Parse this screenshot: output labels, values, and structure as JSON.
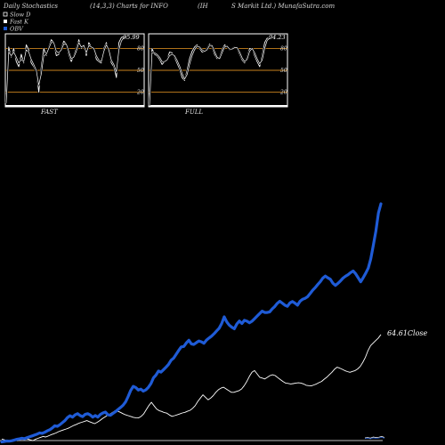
{
  "header": {
    "left": "Daily Stochastics",
    "middle": "(14,3,3) Charts for INFO",
    "right_a": "(IH",
    "right_b": "S Markit Ltd.) MunafaSutra.com"
  },
  "legend": [
    {
      "label": "Slow  D",
      "color": "#ffffff",
      "swatch": "empty"
    },
    {
      "label": "Fast K",
      "color": "#ffffff",
      "swatch": "filled"
    },
    {
      "label": "OBV",
      "color": "#1f5bd6",
      "swatch": "filled"
    }
  ],
  "colors": {
    "background": "#000000",
    "panel": "#ffffff",
    "level_line": "#c8821e",
    "stoch_line": "#ffffff",
    "obv": "#1f5bd6",
    "price": "#ffffff"
  },
  "chart_data": [
    {
      "type": "line",
      "panel_label": "FAST",
      "ylim": [
        0,
        100
      ],
      "levels": [
        80,
        50,
        20
      ],
      "level_labels": [
        "80",
        "50",
        "20"
      ],
      "last_value_label": "95.99",
      "series": [
        {
          "name": "Fast K",
          "values": [
            5,
            82,
            68,
            80,
            62,
            55,
            72,
            60,
            85,
            78,
            60,
            55,
            48,
            20,
            55,
            80,
            70,
            82,
            92,
            88,
            70,
            72,
            80,
            90,
            86,
            72,
            62,
            70,
            80,
            92,
            80,
            85,
            70,
            88,
            82,
            80,
            65,
            62,
            60,
            80,
            88,
            75,
            60,
            55,
            40,
            88,
            95,
            96,
            96
          ]
        },
        {
          "name": "Slow  D",
          "values": [
            5,
            75,
            70,
            75,
            68,
            60,
            65,
            62,
            78,
            75,
            65,
            58,
            50,
            30,
            45,
            70,
            72,
            80,
            88,
            88,
            76,
            74,
            78,
            86,
            86,
            76,
            66,
            68,
            76,
            88,
            82,
            84,
            74,
            84,
            82,
            80,
            70,
            64,
            62,
            76,
            85,
            78,
            64,
            58,
            48,
            78,
            90,
            95,
            96
          ]
        }
      ]
    },
    {
      "type": "line",
      "panel_label": "FULL",
      "ylim": [
        0,
        100
      ],
      "levels": [
        80,
        50,
        20
      ],
      "level_labels": [
        "80",
        "50",
        "20"
      ],
      "last_value_label": "94.23",
      "series": [
        {
          "name": "Fast K",
          "values": [
            2,
            80,
            72,
            70,
            65,
            58,
            62,
            64,
            75,
            74,
            68,
            60,
            52,
            40,
            36,
            50,
            66,
            76,
            82,
            85,
            80,
            75,
            76,
            80,
            86,
            82,
            72,
            66,
            68,
            78,
            85,
            82,
            78,
            80,
            82,
            80,
            72,
            64,
            60,
            68,
            80,
            80,
            70,
            62,
            55,
            70,
            88,
            94,
            94
          ]
        },
        {
          "name": "Slow  D",
          "values": [
            2,
            74,
            74,
            72,
            68,
            62,
            62,
            64,
            70,
            72,
            70,
            64,
            56,
            46,
            38,
            44,
            58,
            70,
            78,
            83,
            82,
            78,
            76,
            78,
            84,
            84,
            76,
            68,
            66,
            74,
            82,
            83,
            79,
            79,
            81,
            81,
            75,
            67,
            62,
            65,
            76,
            80,
            74,
            66,
            59,
            64,
            80,
            91,
            94
          ]
        }
      ]
    },
    {
      "type": "line",
      "panel_label": "",
      "series": [
        {
          "name": "OBV",
          "values": [
            2,
            4,
            6,
            5,
            7,
            10,
            13,
            15,
            18,
            16,
            20,
            24,
            28,
            32,
            36,
            41,
            39,
            44,
            50,
            55,
            63,
            72,
            70,
            77,
            86,
            95,
            108,
            116,
            110,
            120,
            125,
            117,
            112,
            122,
            125,
            119,
            110,
            117,
            110,
            122,
            128,
            132,
            120,
            118,
            126,
            134,
            143,
            152,
            162,
            177,
            200,
            226,
            244,
            239,
            228,
            232,
            223,
            229,
            240,
            256,
            281,
            293,
            311,
            306,
            317,
            328,
            340,
            358,
            367,
            384,
            401,
            416,
            418,
            433,
            445,
            429,
            427,
            435,
            442,
            438,
            432,
            446,
            455,
            463,
            474,
            486,
            497,
            518,
            547,
            525,
            511,
            502,
            495,
            516,
            529,
            518,
            532,
            528,
            521,
            528,
            539,
            550,
            561,
            572,
            566,
            566,
            569,
            582,
            592,
            606,
            615,
            607,
            598,
            593,
            608,
            614,
            607,
            598,
            615,
            624,
            628,
            635,
            649,
            663,
            675,
            688,
            700,
            716,
            725,
            717,
            711,
            694,
            684,
            693,
            704,
            716,
            724,
            731,
            740,
            747,
            735,
            718,
            700,
            718,
            738,
            760,
            800,
            860,
            920,
            1000,
            1040
          ]
        },
        {
          "name": "Price",
          "values": [
            2,
            1.5,
            1,
            0.8,
            1.2,
            1.5,
            1,
            2,
            2.5,
            2.2,
            2,
            1.5,
            1,
            1.8,
            2.4,
            3,
            3.5,
            3.2,
            3.8,
            4.5,
            5,
            5.6,
            6.4,
            7,
            7.5,
            8,
            8.6,
            9.4,
            10.2,
            10.8,
            11.5,
            12,
            12.5,
            13,
            12.4,
            11.8,
            11.2,
            12,
            13,
            14.2,
            15.2,
            16.2,
            17,
            18,
            19,
            18.6,
            18,
            17.2,
            16.5,
            16,
            15.5,
            15,
            14.7,
            14.6,
            15.5,
            17,
            19.5,
            22,
            24,
            22,
            20,
            19,
            18.5,
            17.8,
            17.5,
            16.4,
            15.6,
            16,
            16.5,
            17,
            17.6,
            18,
            18.6,
            19.2,
            20.4,
            22,
            24.5,
            26.5,
            28.5,
            27,
            25.5,
            26.5,
            28,
            30,
            31.5,
            32.5,
            33,
            32,
            31,
            30,
            30,
            30.5,
            31,
            32,
            34,
            36.5,
            39.5,
            42,
            43,
            41,
            39,
            38.5,
            38,
            39,
            40,
            40.5,
            40,
            38.8,
            37.6,
            36.5,
            35.5,
            35.3,
            35,
            35.2,
            35.5,
            35.7,
            35.5,
            35,
            34.2,
            34,
            33.8,
            34.4,
            35,
            35.8,
            36.5,
            37.8,
            39,
            40.5,
            42,
            43.8,
            45,
            44.5,
            43.8,
            43,
            42.4,
            42,
            42.5,
            43,
            44,
            45.5,
            48,
            51,
            55,
            58,
            59.5,
            61,
            62.5,
            64.61
          ]
        }
      ],
      "end_label": "64.61Close",
      "stub_values": [
        {
          "label": "Price",
          "values": [
            1,
            1.2,
            0.9,
            1.5,
            1.2,
            1.4,
            1.8,
            1.3
          ]
        },
        {
          "label": "OBV",
          "values": [
            0.6,
            0.8,
            0.5,
            1,
            0.7,
            0.9,
            1.3,
            0.8
          ]
        }
      ]
    }
  ]
}
